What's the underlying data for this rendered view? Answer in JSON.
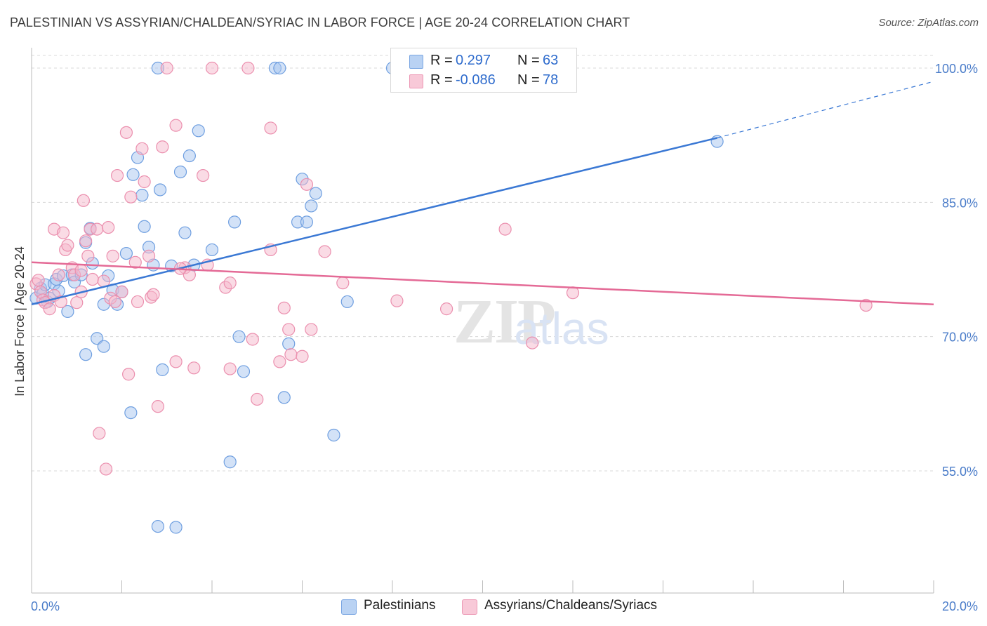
{
  "header": {
    "title": "PALESTINIAN VS ASSYRIAN/CHALDEAN/SYRIAC IN LABOR FORCE | AGE 20-24 CORRELATION CHART",
    "source": "Source: ZipAtlas.com"
  },
  "watermark": "ZIPatlas",
  "legend": {
    "rows": [
      {
        "r_label": "R =",
        "r_value": "0.297",
        "n_label": "N =",
        "n_value": "63"
      },
      {
        "r_label": "R =",
        "r_value": "-0.086",
        "n_label": "N =",
        "n_value": "78"
      }
    ]
  },
  "bottom_legend": {
    "items": [
      {
        "label": "Palestinians"
      },
      {
        "label": "Assyrians/Chaldeans/Syriacs"
      }
    ]
  },
  "colors": {
    "blue_fill": "#a8c6f0",
    "blue_stroke": "#6f9fe0",
    "blue_line": "#3a78d4",
    "pink_fill": "#f6b8cc",
    "pink_stroke": "#eb8fae",
    "pink_line": "#e46a96",
    "tick_text": "#4a7cc9",
    "grid": "#d8d8d8"
  },
  "chart_data": {
    "type": "scatter",
    "title": "PALESTINIAN VS ASSYRIAN/CHALDEAN/SYRIAC IN LABOR FORCE | AGE 20-24 CORRELATION CHART",
    "xlabel": "",
    "ylabel": "In Labor Force | Age 20-24",
    "xlim": [
      0,
      20
    ],
    "ylim": [
      40.5,
      101.5
    ],
    "x_tick_labels": [
      "0.0%",
      "20.0%"
    ],
    "y_ticks": [
      55,
      70,
      85,
      100
    ],
    "y_tick_labels": [
      "55.0%",
      "70.0%",
      "85.0%",
      "100.0%"
    ],
    "grid": true,
    "legend_position": "top-center",
    "series": [
      {
        "name": "Palestinians",
        "color": "#a8c6f0",
        "trend": {
          "x": [
            0,
            15.2
          ],
          "y": [
            73.6,
            92.2
          ],
          "dashed_to": [
            20,
            98.5
          ]
        },
        "points": [
          [
            0.1,
            74.3
          ],
          [
            0.2,
            75.4
          ],
          [
            0.25,
            74.8
          ],
          [
            0.3,
            75.8
          ],
          [
            0.35,
            73.9
          ],
          [
            0.4,
            74.3
          ],
          [
            0.5,
            75.9
          ],
          [
            0.55,
            76.4
          ],
          [
            0.6,
            75.1
          ],
          [
            0.7,
            76.8
          ],
          [
            0.8,
            72.8
          ],
          [
            0.9,
            76.9
          ],
          [
            0.95,
            76.1
          ],
          [
            1.1,
            76.9
          ],
          [
            1.2,
            80.5
          ],
          [
            1.3,
            82.1
          ],
          [
            1.35,
            78.2
          ],
          [
            1.45,
            69.8
          ],
          [
            1.6,
            73.6
          ],
          [
            1.7,
            76.8
          ],
          [
            1.8,
            75.2
          ],
          [
            1.9,
            73.6
          ],
          [
            2.0,
            75.0
          ],
          [
            2.1,
            79.3
          ],
          [
            2.2,
            61.5
          ],
          [
            2.25,
            88.1
          ],
          [
            2.35,
            90.0
          ],
          [
            2.45,
            85.8
          ],
          [
            2.5,
            82.3
          ],
          [
            2.6,
            80.0
          ],
          [
            2.7,
            78.0
          ],
          [
            2.8,
            48.8
          ],
          [
            2.85,
            86.4
          ],
          [
            2.9,
            66.3
          ],
          [
            3.2,
            48.7
          ],
          [
            3.3,
            88.4
          ],
          [
            3.4,
            81.6
          ],
          [
            3.5,
            90.2
          ],
          [
            3.6,
            78.0
          ],
          [
            3.7,
            93.0
          ],
          [
            4.0,
            79.7
          ],
          [
            4.4,
            56.0
          ],
          [
            4.5,
            82.8
          ],
          [
            4.6,
            70.0
          ],
          [
            4.7,
            66.1
          ],
          [
            5.4,
            100.0
          ],
          [
            5.5,
            100.0
          ],
          [
            5.6,
            63.2
          ],
          [
            5.7,
            69.2
          ],
          [
            5.9,
            82.8
          ],
          [
            6.0,
            87.6
          ],
          [
            6.1,
            82.8
          ],
          [
            6.2,
            84.6
          ],
          [
            6.3,
            86.0
          ],
          [
            6.7,
            59.0
          ],
          [
            7.0,
            73.9
          ],
          [
            8.0,
            100.0
          ],
          [
            11.3,
            100.0
          ],
          [
            15.2,
            91.8
          ],
          [
            2.8,
            100.0
          ],
          [
            1.2,
            68.0
          ],
          [
            1.6,
            68.9
          ],
          [
            3.1,
            77.9
          ]
        ]
      },
      {
        "name": "Assyrians/Chaldeans/Syriacs",
        "color": "#f6b8cc",
        "trend": {
          "x": [
            0,
            20
          ],
          "y": [
            78.3,
            73.6
          ]
        },
        "points": [
          [
            0.1,
            75.9
          ],
          [
            0.15,
            76.3
          ],
          [
            0.2,
            75.0
          ],
          [
            0.25,
            74.1
          ],
          [
            0.3,
            73.8
          ],
          [
            0.4,
            73.1
          ],
          [
            0.5,
            74.6
          ],
          [
            0.5,
            82.0
          ],
          [
            0.6,
            76.9
          ],
          [
            0.65,
            73.9
          ],
          [
            0.7,
            81.6
          ],
          [
            0.75,
            79.7
          ],
          [
            0.8,
            80.2
          ],
          [
            0.9,
            77.7
          ],
          [
            0.95,
            76.9
          ],
          [
            1.0,
            73.8
          ],
          [
            1.1,
            75.0
          ],
          [
            1.15,
            85.2
          ],
          [
            1.2,
            80.7
          ],
          [
            1.25,
            79.0
          ],
          [
            1.3,
            82.0
          ],
          [
            1.35,
            76.4
          ],
          [
            1.45,
            82.0
          ],
          [
            1.5,
            59.2
          ],
          [
            1.6,
            76.2
          ],
          [
            1.65,
            55.2
          ],
          [
            1.7,
            82.2
          ],
          [
            1.75,
            74.3
          ],
          [
            1.8,
            79.0
          ],
          [
            1.85,
            73.9
          ],
          [
            1.9,
            88.0
          ],
          [
            2.0,
            75.0
          ],
          [
            2.1,
            92.8
          ],
          [
            2.15,
            65.8
          ],
          [
            2.2,
            85.6
          ],
          [
            2.3,
            78.3
          ],
          [
            2.45,
            91.0
          ],
          [
            2.5,
            87.3
          ],
          [
            2.6,
            79.0
          ],
          [
            2.65,
            74.4
          ],
          [
            2.7,
            74.7
          ],
          [
            2.8,
            62.2
          ],
          [
            2.9,
            91.2
          ],
          [
            3.0,
            100.0
          ],
          [
            3.2,
            93.6
          ],
          [
            3.2,
            67.2
          ],
          [
            3.4,
            77.7
          ],
          [
            3.5,
            76.9
          ],
          [
            3.6,
            66.5
          ],
          [
            3.8,
            88.0
          ],
          [
            3.9,
            78.0
          ],
          [
            4.0,
            100.0
          ],
          [
            4.3,
            75.5
          ],
          [
            4.4,
            66.4
          ],
          [
            4.4,
            76.0
          ],
          [
            4.8,
            100.0
          ],
          [
            4.9,
            69.7
          ],
          [
            5.0,
            63.0
          ],
          [
            5.3,
            93.3
          ],
          [
            5.3,
            79.7
          ],
          [
            5.5,
            67.2
          ],
          [
            5.6,
            73.2
          ],
          [
            5.7,
            70.8
          ],
          [
            5.75,
            68.0
          ],
          [
            6.0,
            67.8
          ],
          [
            6.1,
            87.0
          ],
          [
            6.2,
            70.8
          ],
          [
            6.5,
            79.5
          ],
          [
            6.9,
            76.0
          ],
          [
            8.1,
            74.0
          ],
          [
            9.2,
            73.1
          ],
          [
            10.5,
            82.0
          ],
          [
            11.1,
            69.3
          ],
          [
            12.0,
            74.9
          ],
          [
            18.5,
            73.5
          ],
          [
            1.1,
            77.4
          ],
          [
            2.35,
            73.9
          ],
          [
            3.3,
            77.6
          ]
        ]
      }
    ]
  }
}
